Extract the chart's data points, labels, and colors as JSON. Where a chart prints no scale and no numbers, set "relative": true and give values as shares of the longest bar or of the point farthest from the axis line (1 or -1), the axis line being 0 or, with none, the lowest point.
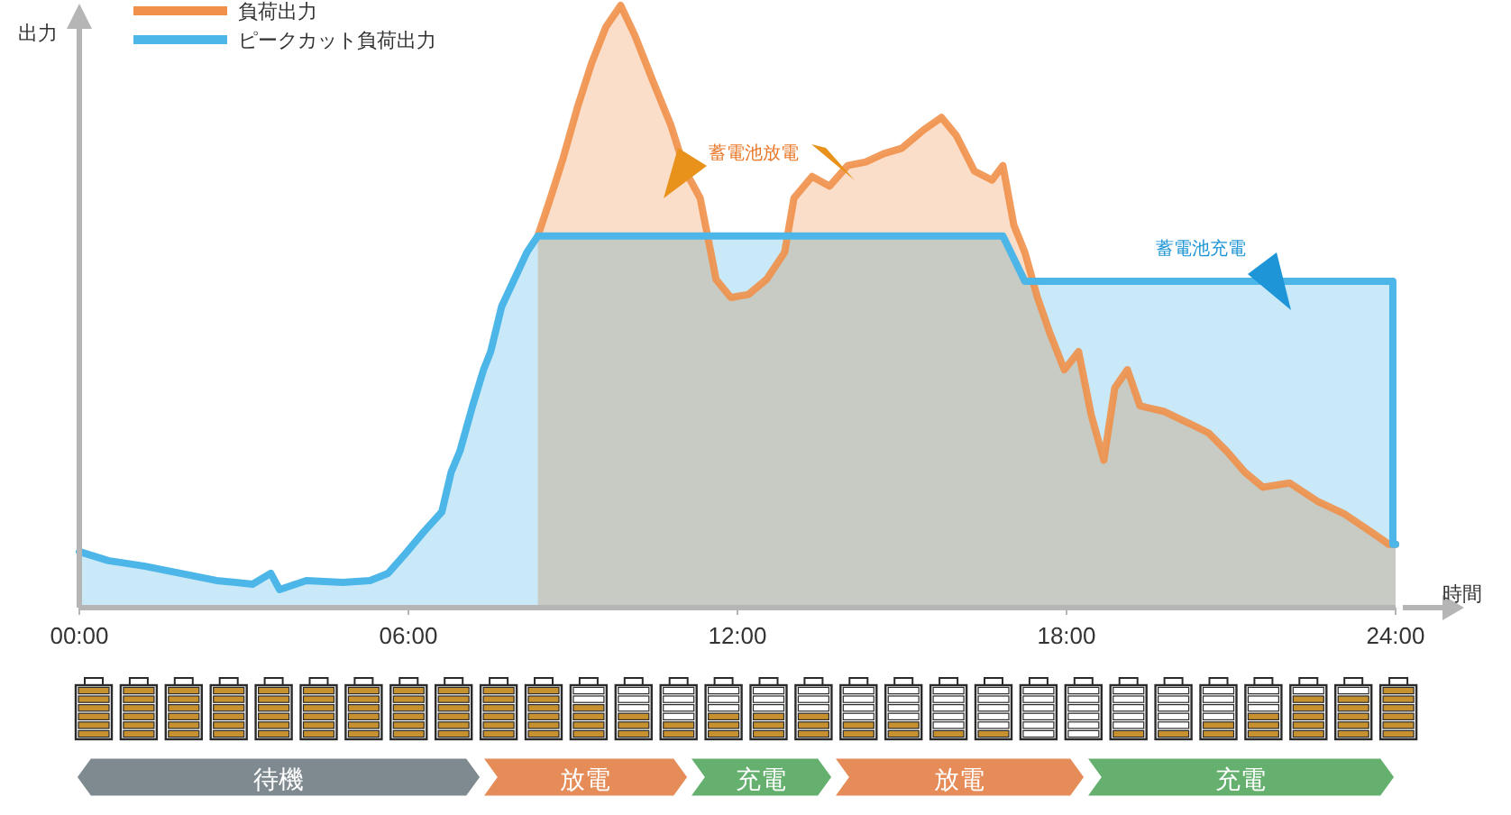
{
  "chart_data": {
    "type": "area",
    "relative": true,
    "ylabel": "出力",
    "xlabel": "時間",
    "legend": "top left",
    "xlim": [
      0,
      24
    ],
    "xticks": [
      {
        "value": 0,
        "label": "00:00"
      },
      {
        "value": 6,
        "label": "06:00"
      },
      {
        "value": 12,
        "label": "12:00"
      },
      {
        "value": 18,
        "label": "18:00"
      },
      {
        "value": 24,
        "label": "24:00"
      }
    ],
    "series": [
      {
        "name": "負荷出力",
        "color": "#f0904a",
        "x": [
          8.36,
          8.59,
          8.82,
          9.08,
          9.34,
          9.6,
          9.87,
          10.13,
          10.46,
          10.79,
          11.05,
          11.32,
          11.45,
          11.61,
          11.88,
          12.2,
          12.53,
          12.86,
          13.03,
          13.36,
          13.68,
          14.01,
          14.34,
          14.67,
          15.0,
          15.39,
          15.72,
          15.99,
          16.32,
          16.64,
          16.84,
          17.04,
          17.24,
          17.47,
          17.7,
          17.96,
          18.22,
          18.45,
          18.68,
          18.88,
          19.11,
          19.34,
          19.77,
          20.26,
          20.59,
          20.92,
          21.25,
          21.58,
          22.07,
          22.57,
          23.06,
          23.55,
          23.88,
          24
        ],
        "values": [
          0.617,
          0.68,
          0.746,
          0.83,
          0.904,
          0.964,
          1.0,
          0.95,
          0.874,
          0.8,
          0.725,
          0.68,
          0.62,
          0.545,
          0.515,
          0.52,
          0.545,
          0.59,
          0.68,
          0.716,
          0.7,
          0.734,
          0.74,
          0.754,
          0.763,
          0.793,
          0.814,
          0.784,
          0.725,
          0.71,
          0.734,
          0.635,
          0.59,
          0.515,
          0.455,
          0.395,
          0.425,
          0.32,
          0.245,
          0.365,
          0.395,
          0.335,
          0.326,
          0.305,
          0.29,
          0.26,
          0.225,
          0.2,
          0.207,
          0.177,
          0.156,
          0.126,
          0.105,
          0.105
        ]
      },
      {
        "name": "ピークカット負荷出力",
        "color": "#4db6e8",
        "x": [
          0,
          0.53,
          1.18,
          1.84,
          2.5,
          3.16,
          3.49,
          3.65,
          4.14,
          4.8,
          5.3,
          5.63,
          5.95,
          6.28,
          6.61,
          6.78,
          6.94,
          7.17,
          7.37,
          7.5,
          7.7,
          7.93,
          8.16,
          8.36,
          16.84,
          17.24,
          23.95,
          23.95,
          24
        ],
        "values": [
          0.093,
          0.078,
          0.069,
          0.057,
          0.045,
          0.039,
          0.057,
          0.03,
          0.045,
          0.042,
          0.045,
          0.057,
          0.09,
          0.126,
          0.159,
          0.225,
          0.26,
          0.335,
          0.395,
          0.425,
          0.5,
          0.545,
          0.59,
          0.617,
          0.617,
          0.542,
          0.542,
          0.105,
          0.105
        ]
      }
    ],
    "annotations": [
      "蓄電池放電",
      "蓄電池充電",
      "待機",
      "放電",
      "充電",
      "放電",
      "充電"
    ]
  }
}
